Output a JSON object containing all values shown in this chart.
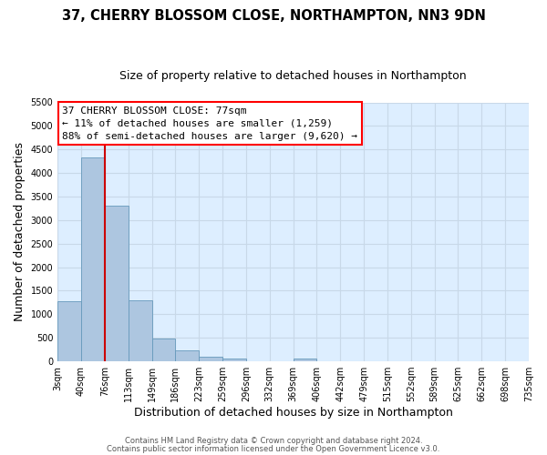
{
  "title": "37, CHERRY BLOSSOM CLOSE, NORTHAMPTON, NN3 9DN",
  "subtitle": "Size of property relative to detached houses in Northampton",
  "xlabel": "Distribution of detached houses by size in Northampton",
  "ylabel": "Number of detached properties",
  "bin_labels": [
    "3sqm",
    "40sqm",
    "76sqm",
    "113sqm",
    "149sqm",
    "186sqm",
    "223sqm",
    "259sqm",
    "296sqm",
    "332sqm",
    "369sqm",
    "406sqm",
    "442sqm",
    "479sqm",
    "515sqm",
    "552sqm",
    "589sqm",
    "625sqm",
    "662sqm",
    "698sqm",
    "735sqm"
  ],
  "bar_values": [
    1270,
    4330,
    3300,
    1290,
    480,
    240,
    90,
    50,
    0,
    0,
    60,
    0,
    0,
    0,
    0,
    0,
    0,
    0,
    0,
    0
  ],
  "bar_color": "#adc6e0",
  "bar_edge_color": "#6699bb",
  "grid_color": "#c8d8e8",
  "bg_color": "#ddeeff",
  "ylim": [
    0,
    5500
  ],
  "yticks": [
    0,
    500,
    1000,
    1500,
    2000,
    2500,
    3000,
    3500,
    4000,
    4500,
    5000,
    5500
  ],
  "red_line_color": "#cc0000",
  "annotation_line1": "37 CHERRY BLOSSOM CLOSE: 77sqm",
  "annotation_line2": "← 11% of detached houses are smaller (1,259)",
  "annotation_line3": "88% of semi-detached houses are larger (9,620) →",
  "footer_line1": "Contains HM Land Registry data © Crown copyright and database right 2024.",
  "footer_line2": "Contains public sector information licensed under the Open Government Licence v3.0.",
  "title_fontsize": 10.5,
  "subtitle_fontsize": 9,
  "axis_label_fontsize": 9,
  "tick_fontsize": 7,
  "annotation_fontsize": 8,
  "footer_fontsize": 6
}
